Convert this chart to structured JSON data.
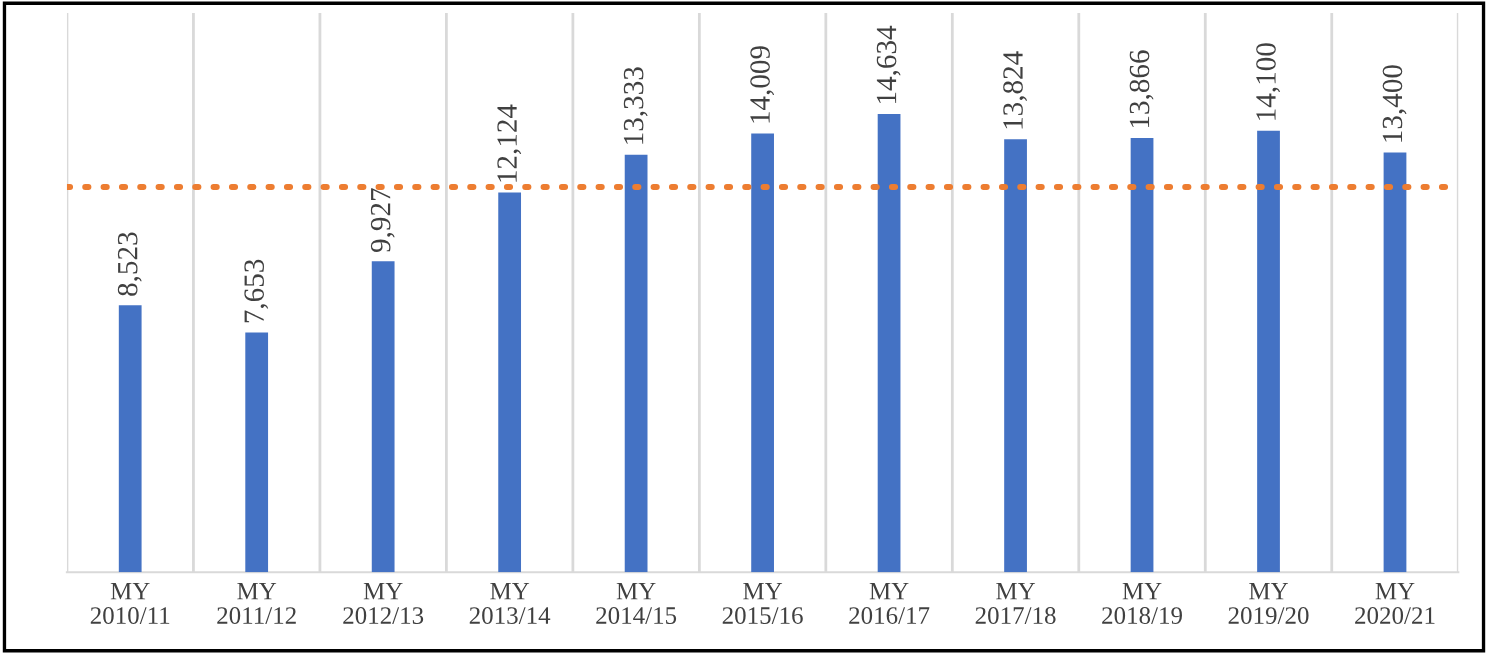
{
  "chart_data": {
    "type": "bar",
    "categories": [
      "MY\n2010/11",
      "MY\n2011/12",
      "MY\n2012/13",
      "MY\n2013/14",
      "MY\n2014/15",
      "MY\n2015/16",
      "MY\n2016/17",
      "MY\n2017/18",
      "MY\n2018/19",
      "MY\n2019/20",
      "MY\n2020/21"
    ],
    "values": [
      8523,
      7653,
      9927,
      12124,
      13333,
      14009,
      14634,
      13824,
      13866,
      14100,
      13400
    ],
    "color": "#4472c4",
    "value_labels": [
      "8,523",
      "7,653",
      "9,927",
      "12,124",
      "13,333",
      "14,009",
      "14,634",
      "13,824",
      "13,866",
      "14,100",
      "13,400"
    ],
    "ref_lines": [
      {
        "axis": "y",
        "value": 12300,
        "color": "#ed7d31",
        "line_style": "dotted"
      }
    ],
    "grid": "x",
    "tick_labels": "x",
    "legend": false
  }
}
